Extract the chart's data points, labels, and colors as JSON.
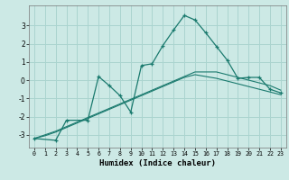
{
  "xlabel": "Humidex (Indice chaleur)",
  "xlim": [
    -0.5,
    23.5
  ],
  "ylim": [
    -3.7,
    4.1
  ],
  "yticks": [
    -3,
    -2,
    -1,
    0,
    1,
    2,
    3
  ],
  "xticks": [
    0,
    1,
    2,
    3,
    4,
    5,
    6,
    7,
    8,
    9,
    10,
    11,
    12,
    13,
    14,
    15,
    16,
    17,
    18,
    19,
    20,
    21,
    22,
    23
  ],
  "bg_color": "#cce9e5",
  "grid_color": "#aad4cf",
  "line_color": "#1a7a6e",
  "line1": {
    "x": [
      0,
      1,
      2,
      3,
      4,
      5,
      6,
      7,
      8,
      9,
      10,
      11,
      12,
      13,
      14,
      15,
      16,
      17,
      18,
      19,
      20,
      21,
      22,
      23
    ],
    "y": [
      -3.2,
      -3.0,
      -2.8,
      -2.55,
      -2.3,
      -2.05,
      -1.8,
      -1.55,
      -1.3,
      -1.05,
      -0.8,
      -0.55,
      -0.3,
      -0.05,
      0.2,
      0.45,
      0.45,
      0.45,
      0.3,
      0.15,
      0.0,
      -0.15,
      -0.3,
      -0.55
    ]
  },
  "line2": {
    "x": [
      0,
      1,
      2,
      3,
      4,
      5,
      6,
      7,
      8,
      9,
      10,
      11,
      12,
      13,
      14,
      15,
      16,
      17,
      18,
      19,
      20,
      21,
      22,
      23
    ],
    "y": [
      -3.2,
      -3.05,
      -2.85,
      -2.6,
      -2.35,
      -2.1,
      -1.85,
      -1.6,
      -1.35,
      -1.1,
      -0.85,
      -0.6,
      -0.35,
      -0.1,
      0.15,
      0.3,
      0.2,
      0.1,
      -0.05,
      -0.2,
      -0.35,
      -0.5,
      -0.65,
      -0.8
    ]
  },
  "line3": {
    "x": [
      0,
      2,
      3,
      5,
      6,
      7,
      8,
      9,
      10,
      11,
      12,
      13,
      14,
      15,
      16,
      17,
      18,
      19,
      20,
      21,
      22,
      23
    ],
    "y": [
      -3.2,
      -3.3,
      -2.2,
      -2.2,
      0.2,
      -0.3,
      -0.85,
      -1.75,
      0.8,
      0.9,
      1.9,
      2.75,
      3.55,
      3.3,
      2.6,
      1.85,
      1.1,
      0.1,
      0.15,
      0.15,
      -0.5,
      -0.7
    ]
  }
}
